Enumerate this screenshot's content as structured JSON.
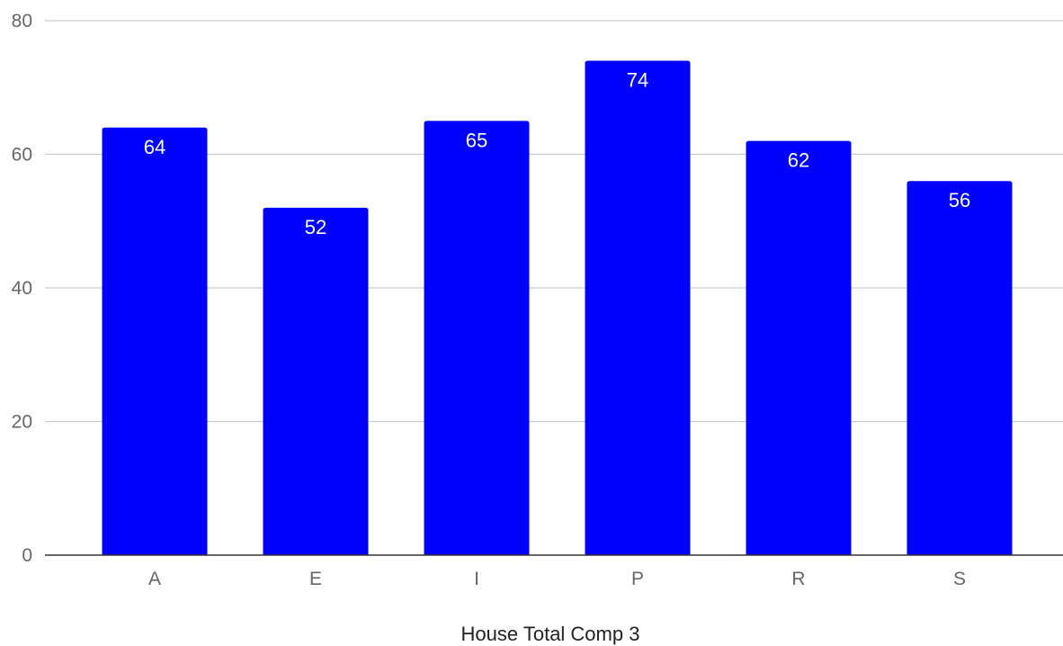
{
  "chart_data": {
    "type": "bar",
    "title": "",
    "xlabel": "House Total Comp 3",
    "ylabel": "",
    "categories": [
      "A",
      "E",
      "I",
      "P",
      "R",
      "S"
    ],
    "series": [
      {
        "values": [
          64,
          52,
          65,
          74,
          62,
          56
        ]
      }
    ],
    "ylim": [
      0,
      80
    ],
    "yticks": [
      0,
      20,
      40,
      60,
      80
    ],
    "grid": true,
    "legend": "none",
    "data_labels": "inside-top"
  },
  "colors": {
    "bar": "#0000ff",
    "grid": "#cccccc",
    "axis": "#333333",
    "tick_text": "#666666",
    "data_label_text": "#ffffff",
    "axis_title_text": "#222222"
  }
}
